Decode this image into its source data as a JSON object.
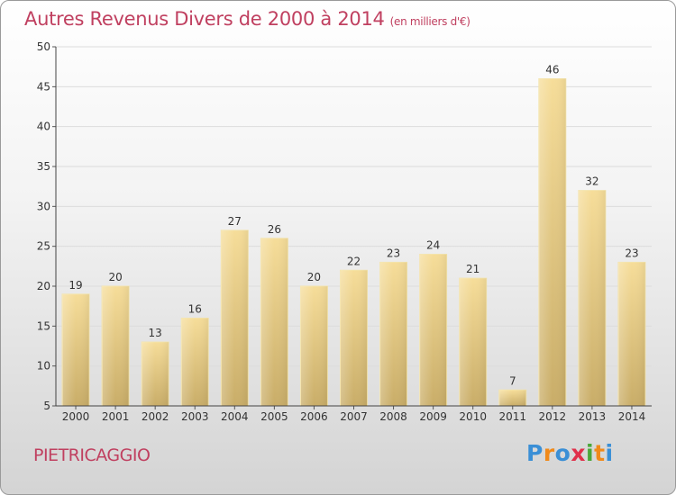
{
  "chart_data": {
    "type": "bar",
    "title": "Autres Revenus Divers de 2000 à 2014",
    "subtitle": "(en milliers d'€)",
    "categories": [
      "2000",
      "2001",
      "2002",
      "2003",
      "2004",
      "2005",
      "2006",
      "2007",
      "2008",
      "2009",
      "2010",
      "2011",
      "2012",
      "2013",
      "2014"
    ],
    "values": [
      19,
      20,
      13,
      16,
      27,
      26,
      20,
      22,
      23,
      24,
      21,
      7,
      46,
      32,
      23
    ],
    "ylim": [
      5,
      50
    ],
    "yticks": [
      5,
      10,
      15,
      20,
      25,
      30,
      35,
      40,
      45,
      50
    ],
    "xlabel": "",
    "ylabel": "",
    "grid": true,
    "bar_color": "#e6c97e"
  },
  "footer": {
    "city": "PIETRICAGGIO",
    "logo_text": "Proxiti"
  },
  "colors": {
    "title": "#c04060",
    "logo": [
      "#3a8fd6",
      "#f08a1a",
      "#3a8fd6",
      "#e0304a",
      "#4aa83a",
      "#f08a1a",
      "#3a8fd6"
    ]
  }
}
